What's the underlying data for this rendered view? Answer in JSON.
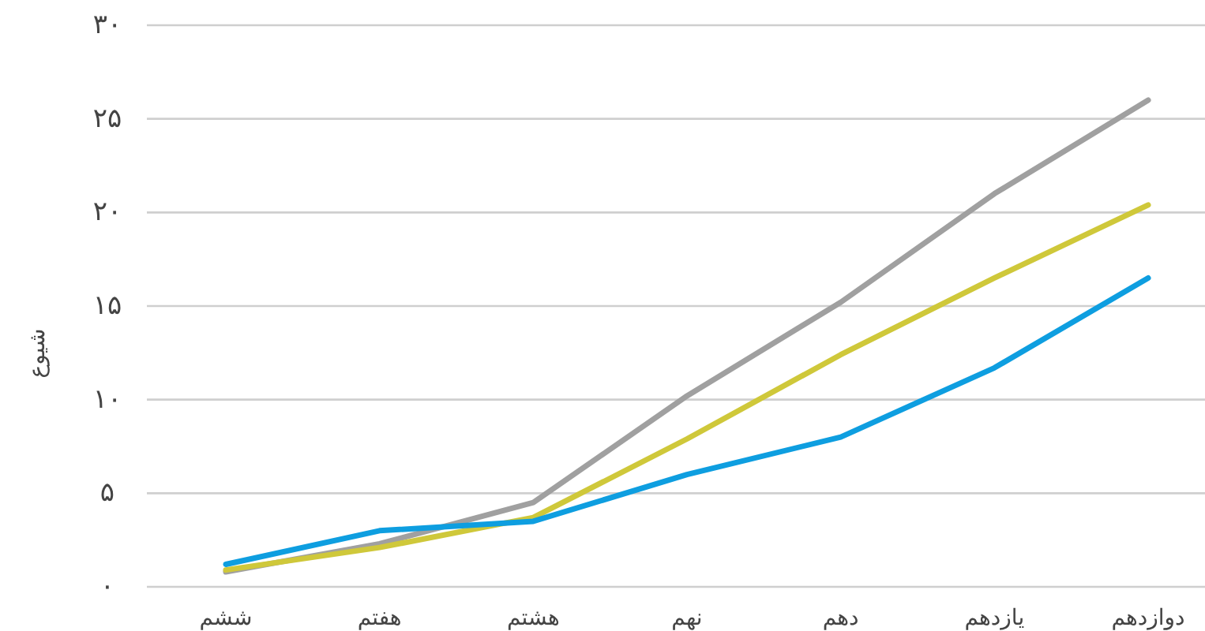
{
  "chart_data": {
    "type": "line",
    "ylabel": "شیوع",
    "categories": [
      "ششم",
      "هفتم",
      "هشتم",
      "نهم",
      "دهم",
      "یازدهم",
      "دوازدهم"
    ],
    "series": [
      {
        "color": "#a0a0a0",
        "values": [
          0.8,
          2.3,
          4.5,
          10.2,
          15.2,
          21,
          26
        ]
      },
      {
        "color": "#cfc83a",
        "values": [
          0.9,
          2.1,
          3.7,
          7.9,
          12.4,
          16.5,
          20.4
        ]
      },
      {
        "color": "#0e9ee0",
        "values": [
          1.2,
          3.0,
          3.5,
          6.0,
          8.0,
          11.7,
          16.5
        ]
      }
    ],
    "ylim": [
      0,
      30
    ],
    "yticks": [
      {
        "value": 0,
        "label": "۰"
      },
      {
        "value": 5,
        "label": "۵"
      },
      {
        "value": 10,
        "label": "۱۰"
      },
      {
        "value": 15,
        "label": "۱۵"
      },
      {
        "value": 20,
        "label": "۲۰"
      },
      {
        "value": 25,
        "label": "۲۵"
      },
      {
        "value": 30,
        "label": "۳۰"
      }
    ],
    "grid": "y",
    "marker": "none",
    "line_style": "solid"
  }
}
